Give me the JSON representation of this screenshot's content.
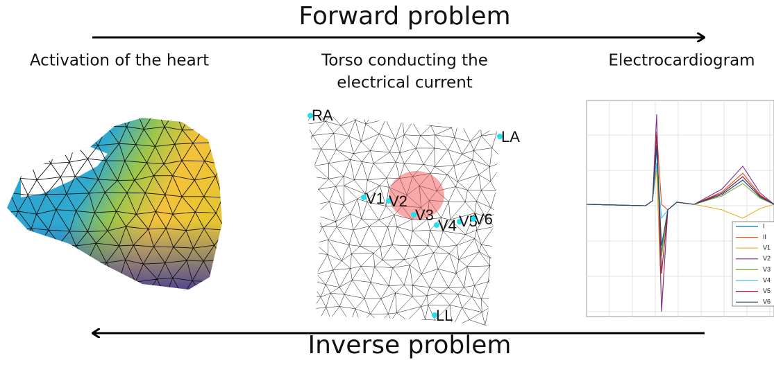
{
  "header": {
    "forward": "Forward problem",
    "inverse": "Inverse problem"
  },
  "panels": {
    "heart": {
      "label": "Activation of the heart"
    },
    "torso": {
      "label_lines": [
        "Torso conducting the",
        "electrical current"
      ],
      "electrodes": [
        "RA",
        "LA",
        "V1",
        "V2",
        "V3",
        "V4",
        "V5",
        "V6",
        "LL"
      ]
    },
    "ecg": {
      "label": "Electrocardiogram",
      "leads": [
        {
          "name": "I",
          "color": "#0072bd"
        },
        {
          "name": "II",
          "color": "#d95319"
        },
        {
          "name": "V1",
          "color": "#edb120"
        },
        {
          "name": "V2",
          "color": "#7e2f8e"
        },
        {
          "name": "V3",
          "color": "#77ac30"
        },
        {
          "name": "V4",
          "color": "#4dbeee"
        },
        {
          "name": "V5",
          "color": "#a2142f"
        },
        {
          "name": "V6",
          "color": "#1f4e79"
        }
      ]
    }
  }
}
